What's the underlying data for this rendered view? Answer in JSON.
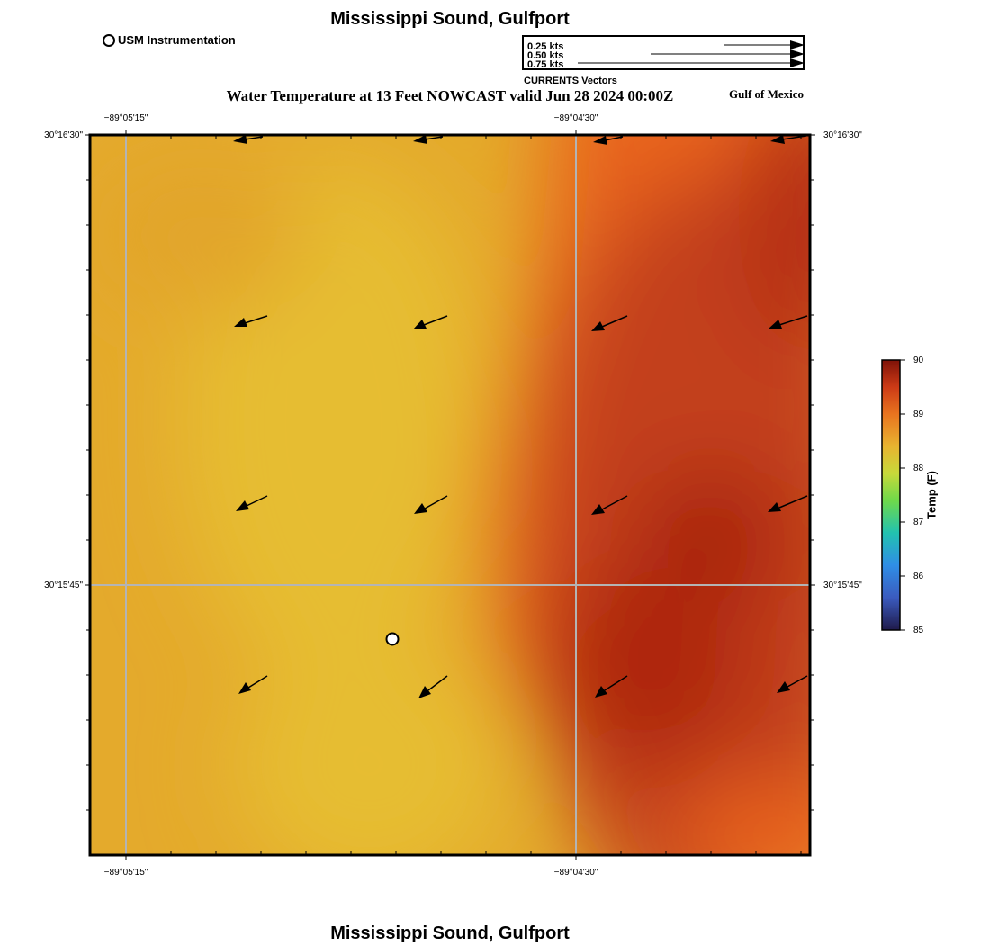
{
  "title": "Mississippi Sound, Gulfport",
  "subtitle": "Water Temperature at 13 Feet NOWCAST valid Jun 28 2024 00:00Z",
  "region_label": "Gulf of Mexico",
  "point_legend": {
    "label": "USM Instrumentation"
  },
  "current_legend": {
    "title": "CURRENTS Vectors",
    "entries": [
      {
        "label": "0.25 kts",
        "kts": 0.25
      },
      {
        "label": "0.50 kts",
        "kts": 0.5
      },
      {
        "label": "0.75 kts",
        "kts": 0.75
      }
    ]
  },
  "map": {
    "lon_labels": [
      "−89°05'15\"",
      "−89°04'30\""
    ],
    "lat_labels": [
      "30°16'30\"",
      "30°15'45\""
    ]
  },
  "colorbar": {
    "label": "Temp (F)",
    "ticks": [
      "90",
      "89",
      "88",
      "87",
      "86",
      "85"
    ],
    "min": 85,
    "max": 90
  }
}
